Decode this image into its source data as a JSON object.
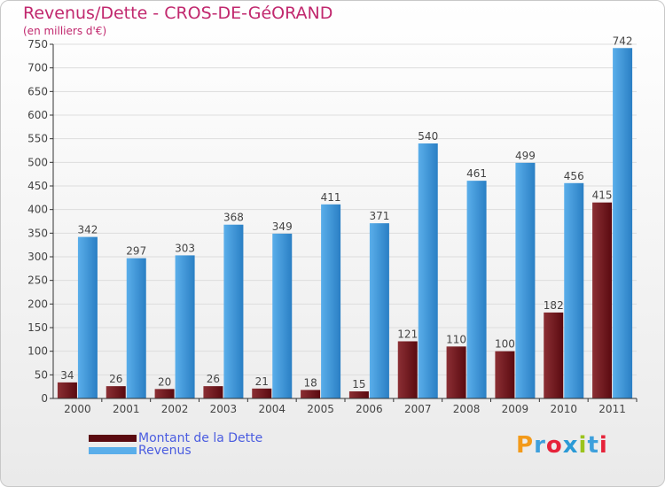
{
  "header": {
    "title": "Revenus/Dette - CROS-DE-GéORAND",
    "subtitle": "(en milliers d'€)"
  },
  "logo": {
    "text": "Proxiti",
    "colors": [
      "#f39a1a",
      "#3ea0dc",
      "#e6233a",
      "#2b9ad6",
      "#9bc31c",
      "#3ea0dc",
      "#e6233a"
    ]
  },
  "colors": {
    "dette_top": "#8b2f34",
    "dette_bottom": "#5a0a10",
    "revenus_top": "#5aaeea",
    "revenus_bottom": "#2a7fc4",
    "grid": "#dddddd",
    "axis": "#333333",
    "text": "#444444"
  },
  "legend": {
    "dette_label": "Montant de la Dette",
    "revenus_label": "Revenus"
  },
  "chart_data": {
    "type": "bar",
    "title": "Revenus/Dette - CROS-DE-GéORAND",
    "ylabel": "(en milliers d'€)",
    "xlabel": "",
    "ylim": [
      0,
      750
    ],
    "yticks": [
      0,
      50,
      100,
      150,
      200,
      250,
      300,
      350,
      400,
      450,
      500,
      550,
      600,
      650,
      700,
      750
    ],
    "grid": true,
    "legend_position": "bottom-left",
    "categories": [
      "2000",
      "2001",
      "2002",
      "2003",
      "2004",
      "2005",
      "2006",
      "2007",
      "2008",
      "2009",
      "2010",
      "2011"
    ],
    "series": [
      {
        "name": "Montant de la Dette",
        "values": [
          34,
          26,
          20,
          26,
          21,
          18,
          15,
          121,
          110,
          100,
          182,
          415
        ]
      },
      {
        "name": "Revenus",
        "values": [
          342,
          297,
          303,
          368,
          349,
          411,
          371,
          540,
          461,
          499,
          456,
          742
        ]
      }
    ]
  }
}
